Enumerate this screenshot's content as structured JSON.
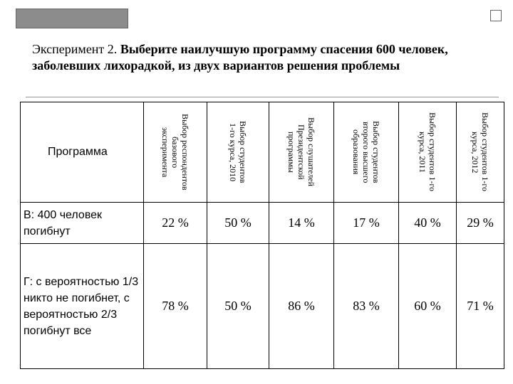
{
  "title": {
    "prefix": "Эксперимент 2.",
    "text": "Выберите наилучшую программу спасения 600 человек, заболевших лихорадкой, из двух вариантов решения проблемы"
  },
  "table": {
    "corner": "Программа",
    "headers": [
      [
        "Выбор респондентов",
        "базового",
        "эксперимента"
      ],
      [
        "Выбор студентов",
        "1-го курса, 2010"
      ],
      [
        "Выбор слушателей",
        "Президентской",
        "программы"
      ],
      [
        "Выбор студентов",
        "второго высшего",
        "образования"
      ],
      [
        "Выбор студентов 1-го",
        "курса, 2011"
      ],
      [
        "Выбор студентов 1-го",
        "курса, 2012"
      ]
    ],
    "rows": [
      {
        "label": "В: 400 человек погибнут",
        "values": [
          "22 %",
          "50 %",
          "14 %",
          "17 %",
          "40 %",
          "29 %"
        ]
      },
      {
        "label": "Г: с вероятностью 1/3 никто не погибнет, с вероятностью 2/3 погибнут все",
        "values": [
          "78 %",
          "50 %",
          "86 %",
          "83 %",
          "60 %",
          "71 %"
        ]
      }
    ]
  }
}
